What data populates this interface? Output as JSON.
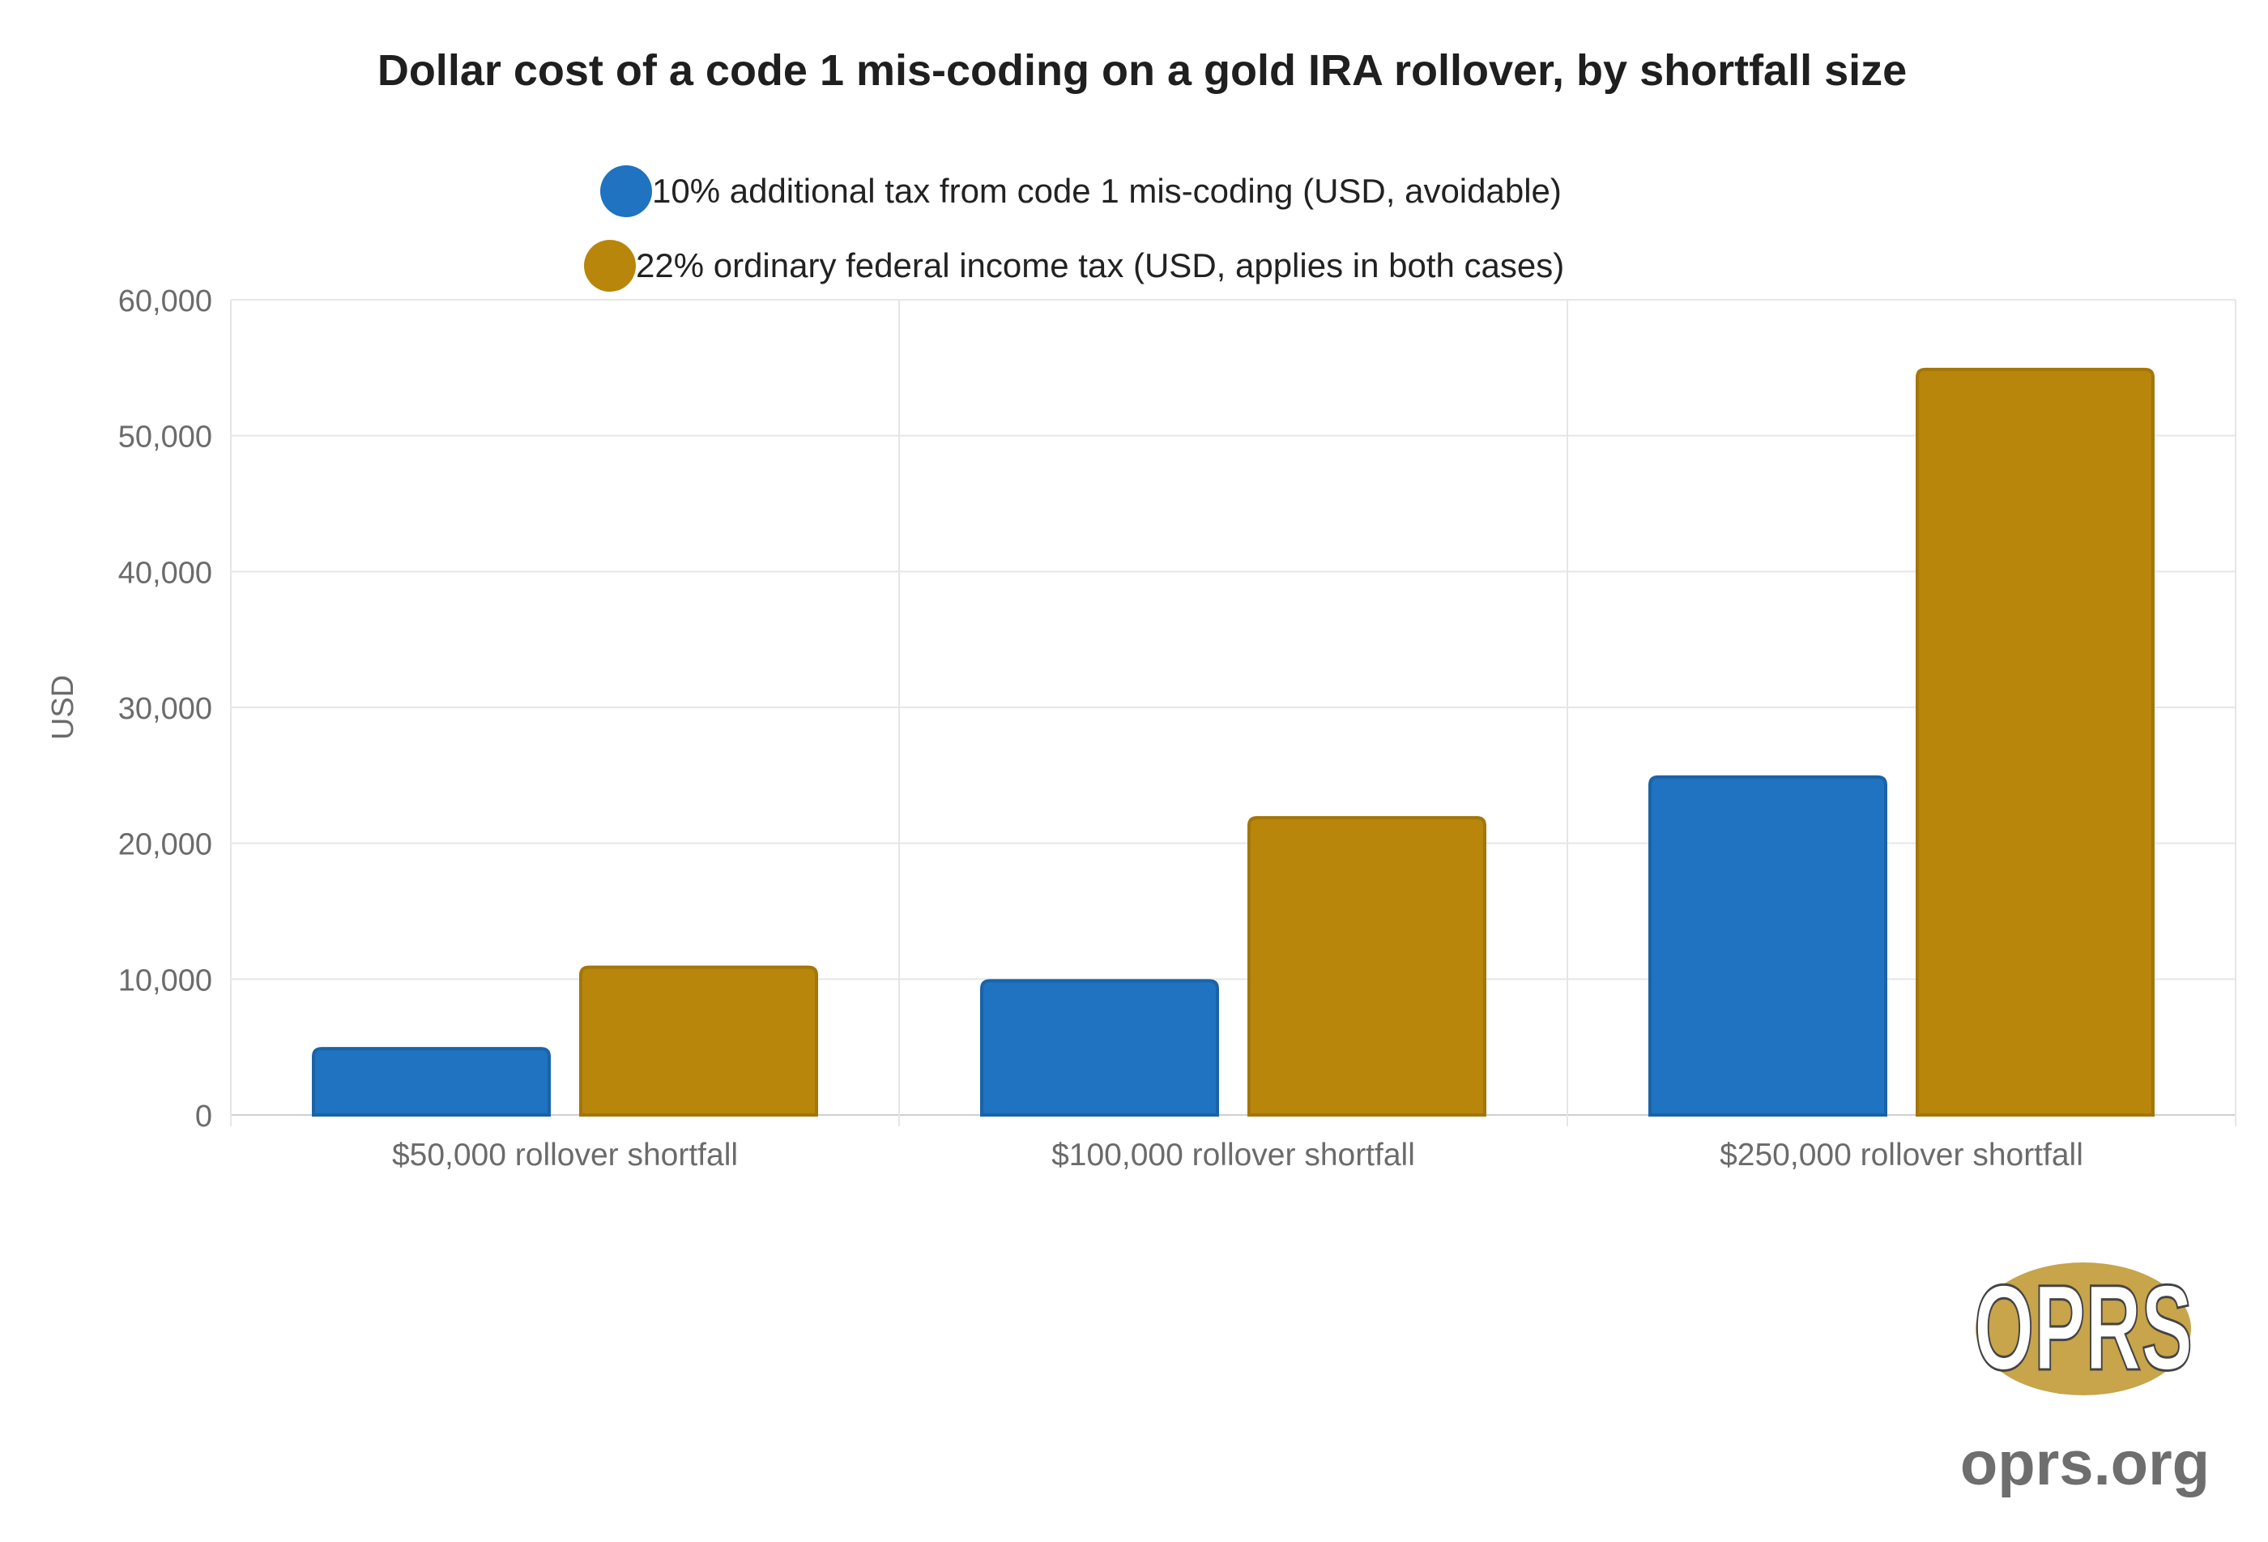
{
  "chart_data": {
    "type": "bar",
    "title": "Dollar cost of a code 1 mis-coding on a gold IRA rollover, by shortfall size",
    "xlabel": "",
    "ylabel": "USD",
    "ylim": [
      0,
      60000
    ],
    "yticks": [
      0,
      10000,
      20000,
      30000,
      40000,
      50000,
      60000
    ],
    "ytick_labels": [
      "0",
      "10,000",
      "20,000",
      "30,000",
      "40,000",
      "50,000",
      "60,000"
    ],
    "grid": true,
    "legend_placement": "top-center",
    "categories": [
      "$50,000 rollover shortfall",
      "$100,000 rollover shortfall",
      "$250,000 rollover shortfall"
    ],
    "series": [
      {
        "name": "10% additional tax from code 1 mis-coding (USD, avoidable)",
        "values": [
          5000,
          10000,
          25000
        ],
        "color": "#1f73c0",
        "border": "#1a63a8"
      },
      {
        "name": "22% ordinary federal income tax (USD, applies in both cases)",
        "values": [
          11000,
          22000,
          55000
        ],
        "color": "#b8860b",
        "border": "#a37608"
      }
    ]
  },
  "logo": {
    "mark": "OPRS",
    "site": "oprs.org",
    "badge_color": "#c8a44a",
    "site_color": "#6e6e6e"
  }
}
